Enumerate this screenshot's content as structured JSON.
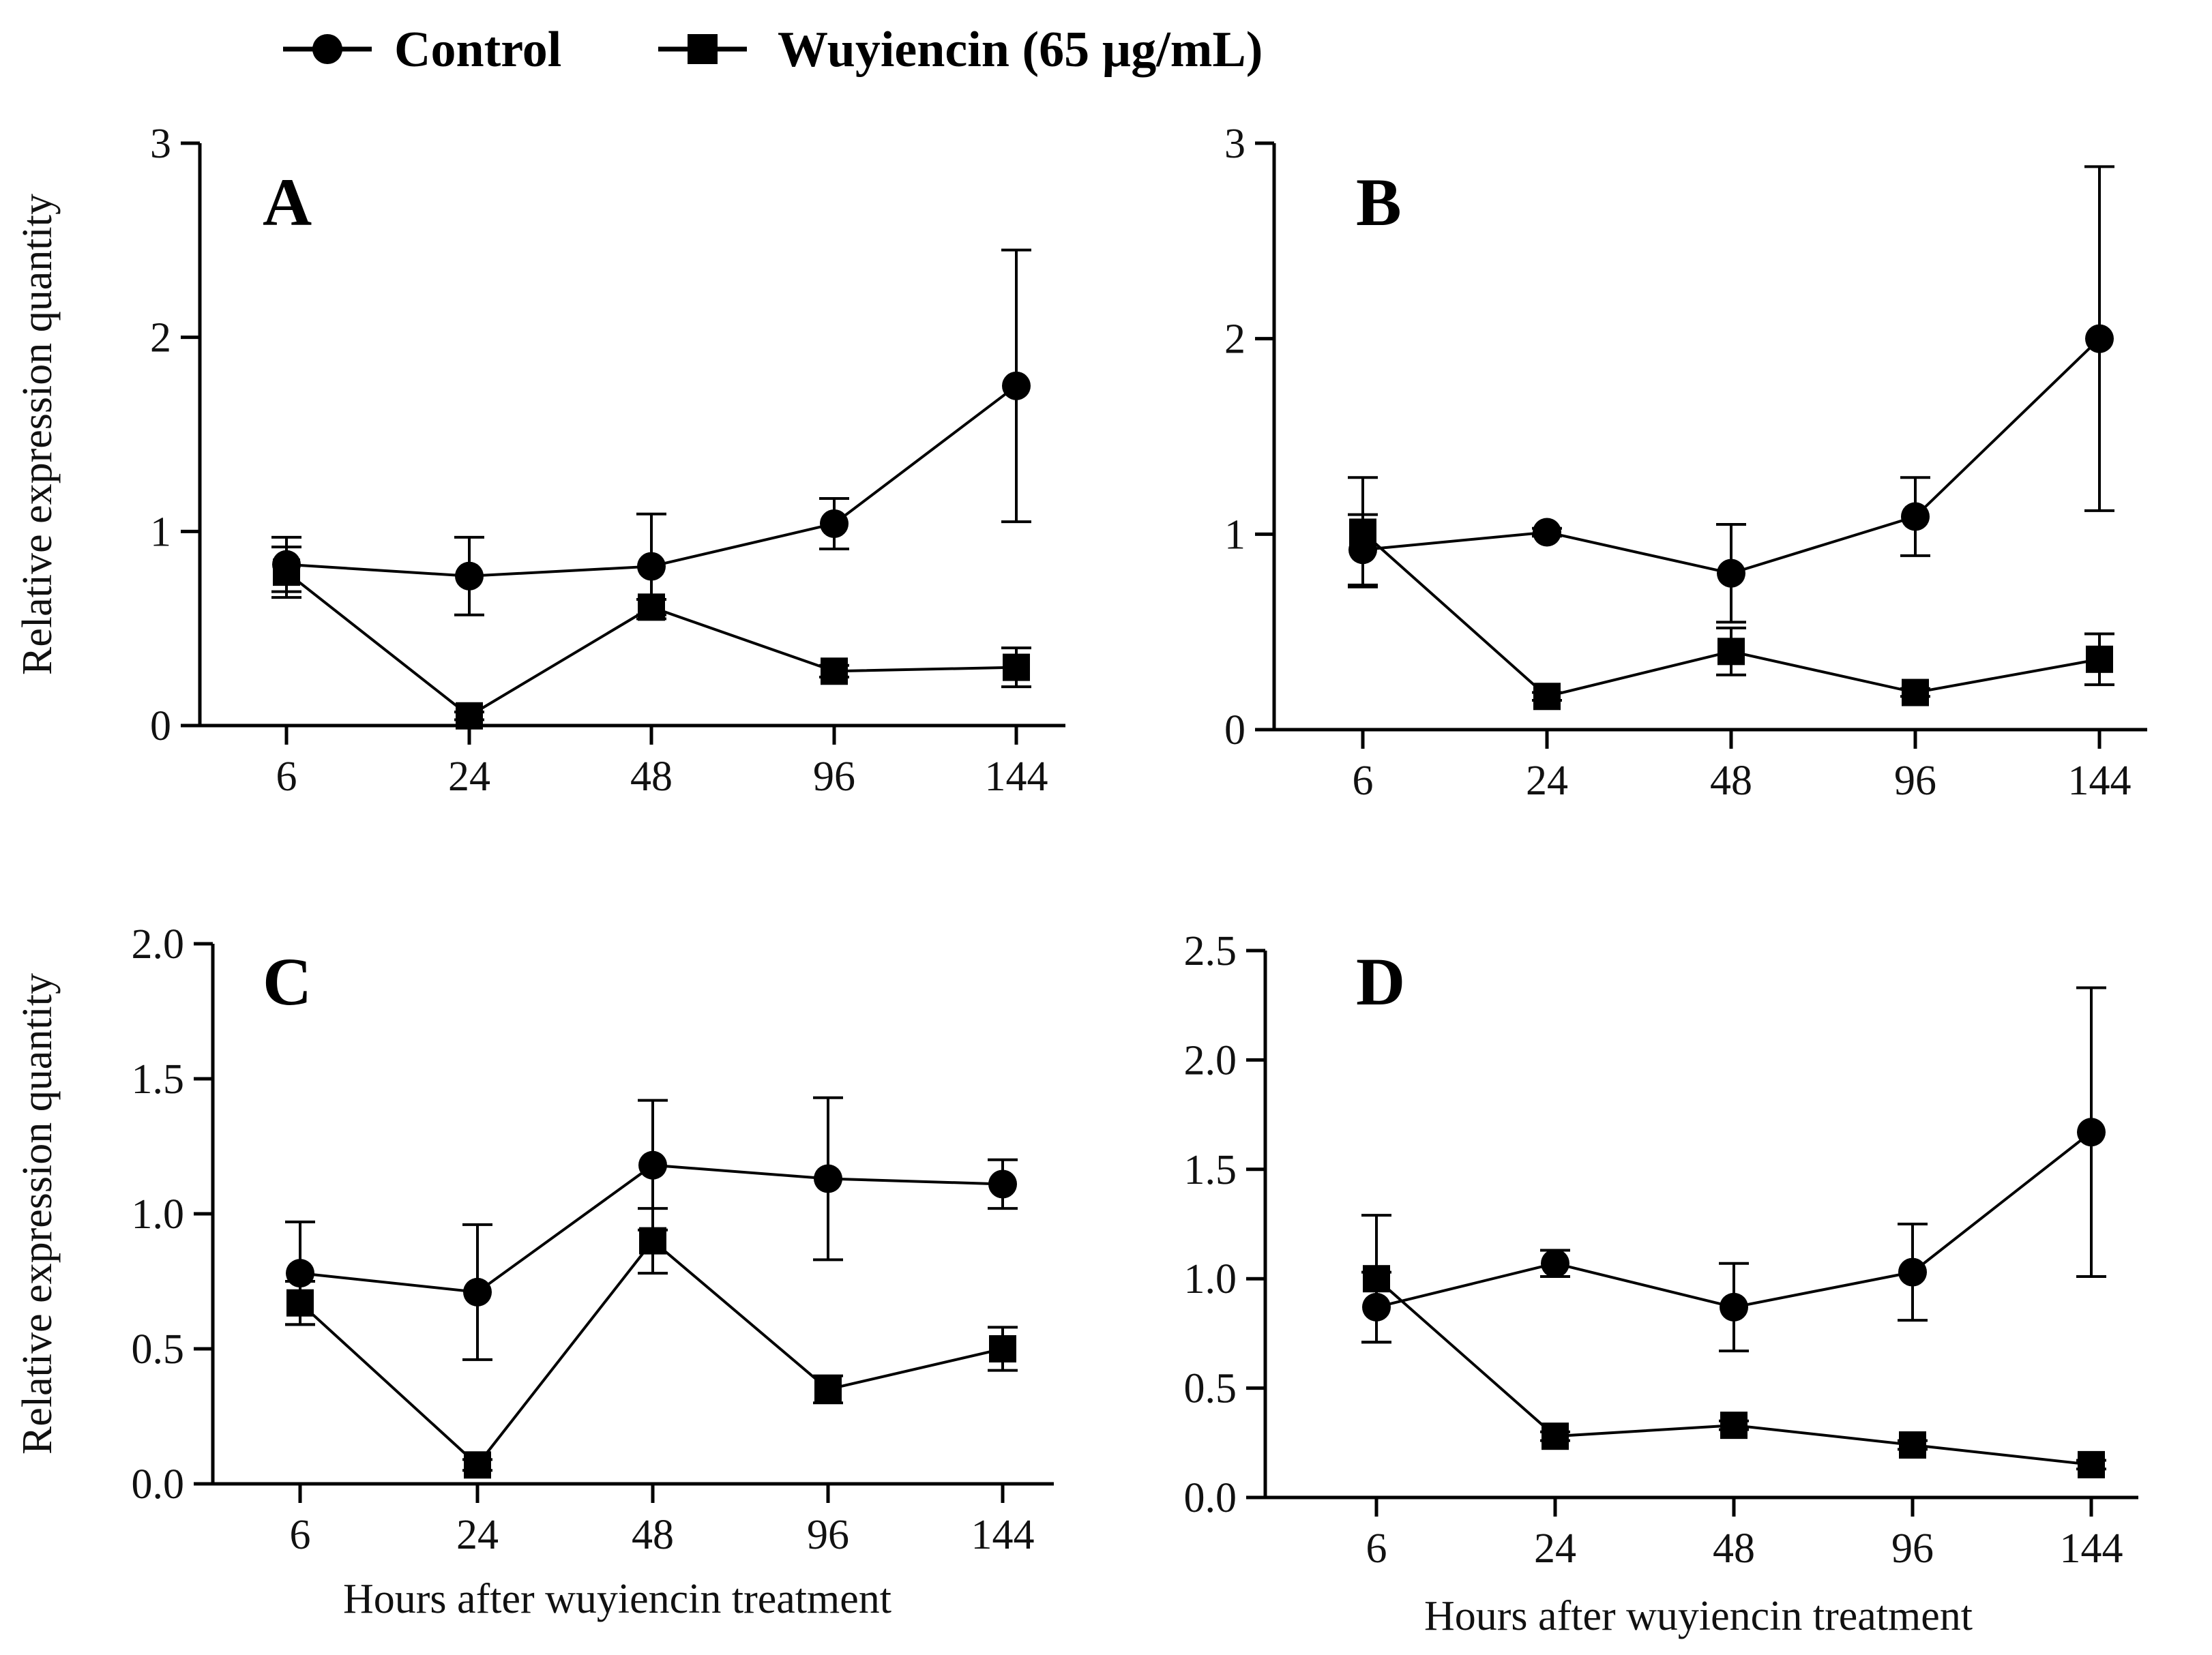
{
  "legend": {
    "series": [
      {
        "name": "Control",
        "marker": "circle"
      },
      {
        "name": "Wuyiencin (65 µg/mL)",
        "marker": "square"
      }
    ]
  },
  "colors": {
    "ink": "#000000",
    "background": "#ffffff"
  },
  "chart_data": [
    {
      "panel": "A",
      "type": "line",
      "categories": [
        "6",
        "24",
        "48",
        "96",
        "144"
      ],
      "ylim": [
        0,
        3
      ],
      "yticks": [
        "0",
        "1",
        "2",
        "3"
      ],
      "ylabel": "Relative expression quantity",
      "xlabel": "",
      "series": [
        {
          "name": "Control",
          "values": [
            0.83,
            0.77,
            0.82,
            1.04,
            1.75
          ],
          "errors": [
            0.14,
            0.2,
            0.27,
            0.13,
            0.7
          ]
        },
        {
          "name": "Wuyiencin (65 µg/mL)",
          "values": [
            0.79,
            0.05,
            0.61,
            0.28,
            0.3
          ],
          "errors": [
            0.13,
            0.02,
            0.04,
            0.03,
            0.1
          ]
        }
      ]
    },
    {
      "panel": "B",
      "type": "line",
      "categories": [
        "6",
        "24",
        "48",
        "96",
        "144"
      ],
      "ylim": [
        0,
        3
      ],
      "yticks": [
        "0",
        "1",
        "2",
        "3"
      ],
      "ylabel": "",
      "xlabel": "",
      "series": [
        {
          "name": "Control",
          "values": [
            0.92,
            1.01,
            0.8,
            1.09,
            2.0
          ],
          "errors": [
            0.18,
            0.02,
            0.25,
            0.2,
            0.88
          ]
        },
        {
          "name": "Wuyiencin (65 µg/mL)",
          "values": [
            1.01,
            0.17,
            0.4,
            0.19,
            0.36
          ],
          "errors": [
            0.28,
            0.02,
            0.12,
            0.02,
            0.13
          ]
        }
      ]
    },
    {
      "panel": "C",
      "type": "line",
      "categories": [
        "6",
        "24",
        "48",
        "96",
        "144"
      ],
      "ylim": [
        0,
        2.0
      ],
      "yticks": [
        "0.0",
        "0.5",
        "1.0",
        "1.5",
        "2.0"
      ],
      "ylabel": "Relative expression quantity",
      "xlabel": "Hours after wuyiencin treatment",
      "series": [
        {
          "name": "Control",
          "values": [
            0.78,
            0.71,
            1.18,
            1.13,
            1.11
          ],
          "errors": [
            0.19,
            0.25,
            0.24,
            0.3,
            0.09
          ]
        },
        {
          "name": "Wuyiencin (65 µg/mL)",
          "values": [
            0.67,
            0.07,
            0.9,
            0.35,
            0.5
          ],
          "errors": [
            0.08,
            0.02,
            0.12,
            0.05,
            0.08
          ]
        }
      ]
    },
    {
      "panel": "D",
      "type": "line",
      "categories": [
        "6",
        "24",
        "48",
        "96",
        "144"
      ],
      "ylim": [
        0,
        2.5
      ],
      "yticks": [
        "0.0",
        "0.5",
        "1.0",
        "1.5",
        "2.0",
        "2.5"
      ],
      "ylabel": "",
      "xlabel": "Hours after wuyiencin treatment",
      "series": [
        {
          "name": "Control",
          "values": [
            0.87,
            1.07,
            0.87,
            1.03,
            1.67
          ],
          "errors": [
            0.16,
            0.06,
            0.2,
            0.22,
            0.66
          ]
        },
        {
          "name": "Wuyiencin (65 µg/mL)",
          "values": [
            1.0,
            0.28,
            0.33,
            0.24,
            0.15
          ],
          "errors": [
            0.29,
            0.02,
            0.02,
            0.02,
            0.02
          ]
        }
      ]
    }
  ]
}
